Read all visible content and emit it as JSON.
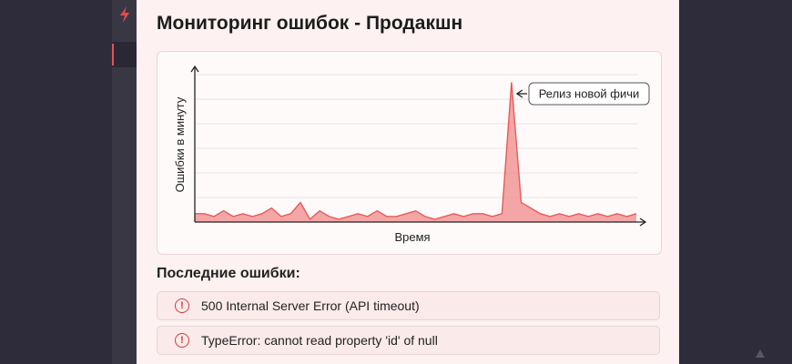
{
  "page": {
    "title": "Мониторинг ошибок - Продакшн"
  },
  "sidebar": {
    "logo_icon": "bolt-logo-icon",
    "active_item": "nav-item"
  },
  "chart_data": {
    "type": "area",
    "title": "",
    "xlabel": "Время",
    "ylabel": "Ошибки в минуту",
    "grid": true,
    "color": "#e85a5a",
    "x": [
      0,
      1,
      2,
      3,
      4,
      5,
      6,
      7,
      8,
      9,
      10,
      11,
      12,
      13,
      14,
      15,
      16,
      17,
      18,
      19,
      20,
      21,
      22,
      23,
      24,
      25,
      26,
      27,
      28,
      29,
      30,
      31,
      32,
      33,
      34,
      35,
      36,
      37,
      38,
      39,
      40,
      41,
      42,
      43,
      44,
      45,
      46
    ],
    "values": [
      3,
      3,
      2,
      4,
      2,
      3,
      2,
      3,
      5,
      2,
      3,
      7,
      1,
      4,
      2,
      1,
      2,
      3,
      2,
      4,
      2,
      2,
      3,
      4,
      2,
      1,
      2,
      3,
      2,
      3,
      3,
      2,
      3,
      50,
      7,
      5,
      3,
      2,
      3,
      2,
      3,
      2,
      3,
      2,
      3,
      2,
      3
    ],
    "ylim": [
      0,
      55
    ],
    "annotation": {
      "text": "Релиз новой фичи",
      "target_index": 33
    }
  },
  "errors": {
    "title": "Последние ошибки:",
    "items": [
      {
        "icon": "alert-circle-icon",
        "text": "500 Internal Server Error (API timeout)"
      },
      {
        "icon": "alert-circle-icon",
        "text": "TypeError: cannot read property 'id' of null"
      }
    ]
  }
}
